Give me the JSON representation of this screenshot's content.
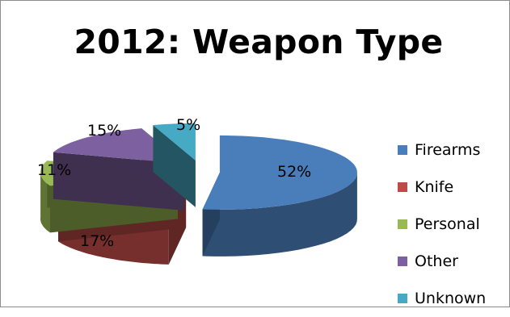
{
  "chart_data": {
    "type": "pie",
    "title": "2012: Weapon Type",
    "categories": [
      "Firearms",
      "Knife",
      "Personal",
      "Other",
      "Unknown"
    ],
    "values": [
      52,
      17,
      11,
      15,
      5
    ],
    "data_labels": [
      "52%",
      "17%",
      "11%",
      "15%",
      "5%"
    ],
    "colors": [
      "#4a7ebb",
      "#be4b48",
      "#98b954",
      "#7d60a0",
      "#46aac5"
    ],
    "exploded": true,
    "style": "3d",
    "legend_position": "right"
  }
}
